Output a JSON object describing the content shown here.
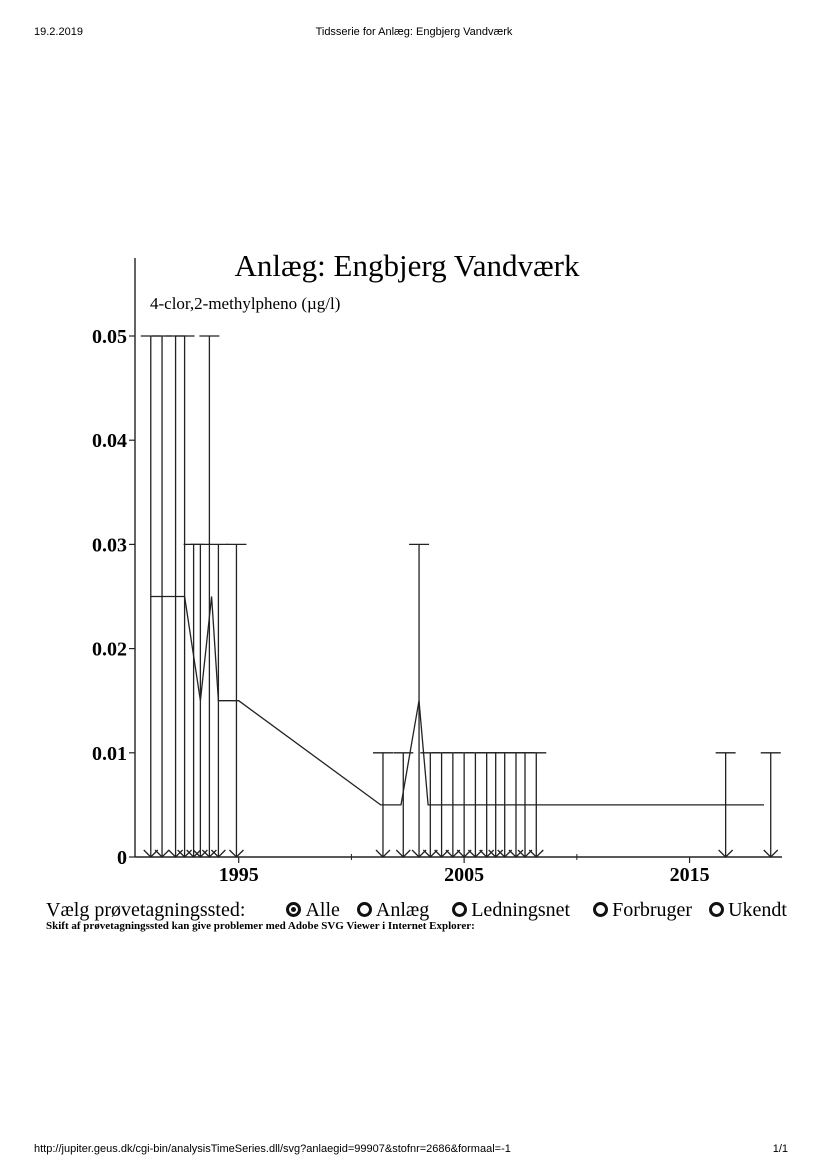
{
  "header": {
    "date": "19.2.2019",
    "title": "Tidsserie for Anlæg: Engbjerg Vandværk"
  },
  "footer": {
    "url": "http://jupiter.geus.dk/cgi-bin/analysisTimeSeries.dll/svg?anlaegid=99907&stofnr=2686&formaal=-1",
    "page": "1/1"
  },
  "chart_data": {
    "type": "line",
    "title": "Anlæg: Engbjerg Vandværk",
    "subtitle": "4-clor,2-methylpheno (µg/l)",
    "xlim": [
      1990.4,
      2019.1
    ],
    "ylim": [
      0,
      0.05
    ],
    "yticks": [
      {
        "value": 0,
        "label": "0"
      },
      {
        "value": 0.01,
        "label": "0.01"
      },
      {
        "value": 0.02,
        "label": "0.02"
      },
      {
        "value": 0.03,
        "label": "0.03"
      },
      {
        "value": 0.04,
        "label": "0.04"
      },
      {
        "value": 0.05,
        "label": "0.05"
      }
    ],
    "xticks": [
      {
        "value": 1995,
        "label": "1995"
      },
      {
        "value": 2005,
        "label": "2005"
      },
      {
        "value": 2015,
        "label": "2015"
      }
    ],
    "minor_xticks": [
      2000,
      2010
    ],
    "grid": false,
    "series": [
      {
        "values": [
          {
            "x": 1991.1,
            "y": 0.025
          },
          {
            "x": 1992.6,
            "y": 0.025
          },
          {
            "x": 1993.3,
            "y": 0.015
          },
          {
            "x": 1993.8,
            "y": 0.025
          },
          {
            "x": 1994.1,
            "y": 0.015
          },
          {
            "x": 1995.0,
            "y": 0.015
          },
          {
            "x": 2001.3,
            "y": 0.005
          },
          {
            "x": 2002.2,
            "y": 0.005
          },
          {
            "x": 2003.0,
            "y": 0.015
          },
          {
            "x": 2003.4,
            "y": 0.005
          },
          {
            "x": 2008.2,
            "y": 0.005
          },
          {
            "x": 2018.3,
            "y": 0.005
          }
        ]
      }
    ],
    "detection_limit_bars": [
      {
        "x": 1991.1,
        "top": 0.05
      },
      {
        "x": 1991.6,
        "top": 0.05
      },
      {
        "x": 1992.2,
        "top": 0.05
      },
      {
        "x": 1992.6,
        "top": 0.05
      },
      {
        "x": 1993.0,
        "top": 0.03
      },
      {
        "x": 1993.3,
        "top": 0.03
      },
      {
        "x": 1993.7,
        "top": 0.05
      },
      {
        "x": 1994.1,
        "top": 0.03
      },
      {
        "x": 1994.9,
        "top": 0.03
      },
      {
        "x": 2001.4,
        "top": 0.01
      },
      {
        "x": 2002.3,
        "top": 0.01
      },
      {
        "x": 2003.0,
        "top": 0.03
      },
      {
        "x": 2003.5,
        "top": 0.01
      },
      {
        "x": 2004.0,
        "top": 0.01
      },
      {
        "x": 2004.5,
        "top": 0.01
      },
      {
        "x": 2005.0,
        "top": 0.01
      },
      {
        "x": 2005.5,
        "top": 0.01
      },
      {
        "x": 2006.0,
        "top": 0.01
      },
      {
        "x": 2006.4,
        "top": 0.01
      },
      {
        "x": 2006.8,
        "top": 0.01
      },
      {
        "x": 2007.3,
        "top": 0.01
      },
      {
        "x": 2007.7,
        "top": 0.01
      },
      {
        "x": 2008.2,
        "top": 0.01
      },
      {
        "x": 2016.6,
        "top": 0.01
      },
      {
        "x": 2018.6,
        "top": 0.01
      }
    ]
  },
  "selector": {
    "label": "Vælg prøvetagningssted:",
    "options": [
      {
        "label": "Alle",
        "checked": true
      },
      {
        "label": "Anlæg",
        "checked": false
      },
      {
        "label": "Ledningsnet",
        "checked": false
      },
      {
        "label": "Forbruger",
        "checked": false
      },
      {
        "label": "Ukendt",
        "checked": false
      }
    ],
    "note": "Skift af prøvetagningssted kan give problemer med Adobe SVG Viewer i Internet Explorer:"
  }
}
